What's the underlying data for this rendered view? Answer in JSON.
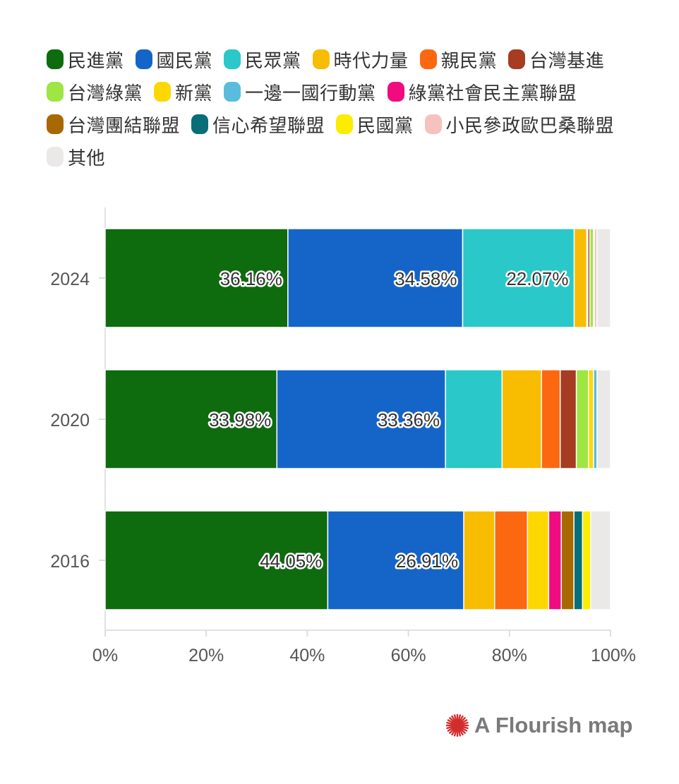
{
  "chart_data": {
    "type": "bar",
    "orientation": "horizontal",
    "stacked": true,
    "title": "",
    "xlabel": "",
    "ylabel": "",
    "xlim": [
      0,
      100
    ],
    "x_ticks": [
      "0%",
      "20%",
      "40%",
      "60%",
      "80%",
      "100%"
    ],
    "legend_position": "top",
    "grid": false,
    "categories": [
      "2024",
      "2020",
      "2016"
    ],
    "series": [
      {
        "name": "民進黨",
        "color": "#0e6b0e",
        "values": [
          36.16,
          33.98,
          44.05
        ],
        "labels": [
          "36.16%",
          "33.98%",
          "44.05%"
        ]
      },
      {
        "name": "國民黨",
        "color": "#1565c8",
        "values": [
          34.58,
          33.36,
          26.91
        ],
        "labels": [
          "34.58%",
          "33.36%",
          "26.91%"
        ]
      },
      {
        "name": "民眾黨",
        "color": "#2ac8c8",
        "values": [
          22.07,
          11.2,
          0
        ],
        "labels": [
          "22.07%",
          "",
          ""
        ]
      },
      {
        "name": "時代力量",
        "color": "#f8bc00",
        "values": [
          2.5,
          7.8,
          6.1
        ],
        "labels": [
          "",
          "",
          ""
        ]
      },
      {
        "name": "親民黨",
        "color": "#fc6810",
        "values": [
          0.2,
          3.7,
          6.5
        ],
        "labels": [
          "",
          "",
          ""
        ]
      },
      {
        "name": "台灣基進",
        "color": "#a63c22",
        "values": [
          0.4,
          3.2,
          0
        ],
        "labels": [
          "",
          "",
          ""
        ]
      },
      {
        "name": "台灣綠黨",
        "color": "#9de643",
        "values": [
          0.7,
          2.4,
          0
        ],
        "labels": [
          "",
          "",
          ""
        ]
      },
      {
        "name": "新黨",
        "color": "#fcd800",
        "values": [
          0.1,
          1.0,
          4.2
        ],
        "labels": [
          "",
          "",
          ""
        ]
      },
      {
        "name": "一邊一國行動黨",
        "color": "#5abcdc",
        "values": [
          0.1,
          0.7,
          0
        ],
        "labels": [
          "",
          "",
          ""
        ]
      },
      {
        "name": "綠黨社會民主黨聯盟",
        "color": "#f00c80",
        "values": [
          0,
          0,
          2.5
        ],
        "labels": [
          "",
          "",
          ""
        ]
      },
      {
        "name": "台灣團結聯盟",
        "color": "#a86800",
        "values": [
          0,
          0,
          2.5
        ],
        "labels": [
          "",
          "",
          ""
        ]
      },
      {
        "name": "信心希望聯盟",
        "color": "#086e78",
        "values": [
          0,
          0,
          1.7
        ],
        "labels": [
          "",
          "",
          ""
        ]
      },
      {
        "name": "民國黨",
        "color": "#fcec00",
        "values": [
          0,
          0,
          1.6
        ],
        "labels": [
          "",
          "",
          ""
        ]
      },
      {
        "name": "小民參政歐巴桑聯盟",
        "color": "#f6c2c0",
        "values": [
          0.5,
          0,
          0
        ],
        "labels": [
          "",
          "",
          ""
        ]
      },
      {
        "name": "其他",
        "color": "#ebe8e8",
        "values": [
          2.69,
          2.66,
          3.94
        ],
        "labels": [
          "",
          "",
          ""
        ]
      }
    ]
  },
  "credit": {
    "text": "A Flourish map",
    "icon": "flourish-star-icon",
    "icon_color": "#d22d2d"
  }
}
